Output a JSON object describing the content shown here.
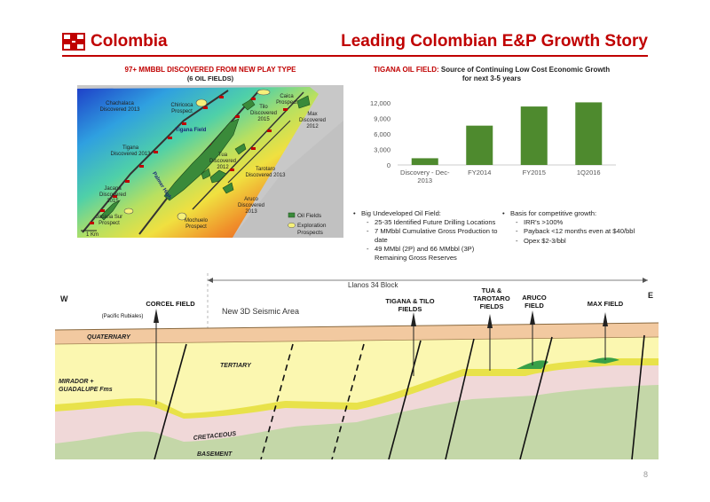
{
  "header": {
    "brand": "Colombia",
    "title": "Leading Colombian E&P Growth Story"
  },
  "map": {
    "title": "97+ MMBBL DISCOVERED FROM NEW PLAY TYPE",
    "subtitle": "(6 OIL FIELDS)",
    "labels": {
      "chachalaca": [
        "Chachalaca",
        "Discovered 2013"
      ],
      "chiricoca": [
        "Chiricoca",
        "Prospect"
      ],
      "tilo": [
        "Tilo",
        "Discovered",
        "2015"
      ],
      "caica": [
        "Caica",
        "Prospect"
      ],
      "max": [
        "Max",
        "Discovered",
        "2012"
      ],
      "tigana_field": "Tigana Field",
      "tigana": [
        "Tigana",
        "Discovered 2013"
      ],
      "tua": [
        "Tua",
        "Discovered",
        "2012"
      ],
      "tarotaro": [
        "Tarotaro",
        "Discovered 2013"
      ],
      "jacana": [
        "Jacana",
        "Discovered",
        "2015"
      ],
      "palmer_high": "Palmer High",
      "jacana_sur": [
        "Jacana Sur",
        "Prospect"
      ],
      "mochuelo": [
        "Mochuelo",
        "Prospect"
      ],
      "aruco": [
        "Aruco",
        "Discovered",
        "2013"
      ],
      "scale": "1 Km"
    },
    "legend": {
      "oil_fields": "Oil Fields",
      "exploration": [
        "Exploration",
        "Prospects"
      ]
    },
    "colors": {
      "oil_field": "#3a8a3a",
      "prospect": "#f5f07a"
    }
  },
  "tigana": {
    "title_bold": "TIGANA OIL FIELD: ",
    "title_rest": "Source of Continuing Low Cost Economic Growth",
    "title_line2": "for next 3-5 years"
  },
  "chart_data": {
    "type": "bar",
    "categories": [
      "Discovery - Dec-2013",
      "FY2014",
      "FY2015",
      "1Q2016"
    ],
    "category_lines": [
      [
        "Discovery - Dec-",
        "2013"
      ],
      [
        "FY2014"
      ],
      [
        "FY2015"
      ],
      [
        "1Q2016"
      ]
    ],
    "values": [
      1300,
      7600,
      11300,
      12100
    ],
    "ylim": [
      0,
      12000
    ],
    "yticks": [
      "0",
      "3,000",
      "6,000",
      "9,000",
      "12,000"
    ],
    "bar_color": "#4e8a2e",
    "grid": false
  },
  "bullets_left": {
    "main": "Big Undeveloped Oil Field:",
    "items": [
      "25-35 Identified Future Drilling Locations",
      "7 MMbbl Cumulative Gross Production to date",
      "49 MMbl (2P) and 66 MMbbl (3P) Remaining Gross Reserves"
    ]
  },
  "bullets_right": {
    "main": "Basis for competitive growth:",
    "items": [
      "IRR's >100%",
      "Payback <12 months even at $40/bbl",
      "Opex $2-3/bbl"
    ]
  },
  "xsection": {
    "block": "Llanos 34 Block",
    "west": "W",
    "east": "E",
    "seismic": "New 3D Seismic Area",
    "corcel": "CORCEL FIELD",
    "corcel_sub": "(Pacific Rubiales)",
    "tigana_tilo": [
      "TIGANA & TILO",
      "FIELDS"
    ],
    "tua_tarotaro": [
      "TUA &",
      "TAROTARO",
      "FIELDS"
    ],
    "aruco": [
      "ARUCO",
      "FIELD"
    ],
    "max": "MAX FIELD",
    "quaternary": "QUATERNARY",
    "tertiary": "TERTIARY",
    "mirador": [
      "MIRADOR +",
      "GUADALUPE Fms"
    ],
    "cretaceous": "CRETACEOUS",
    "basement": "BASEMENT",
    "colors": {
      "quaternary": "#f2c9a0",
      "tertiary": "#fbf7b0",
      "reservoir": "#e8e24a",
      "cretaceous": "#f0d8d8",
      "basement": "#c4d7a8",
      "oil": "#38a048"
    }
  },
  "page_number": "8"
}
